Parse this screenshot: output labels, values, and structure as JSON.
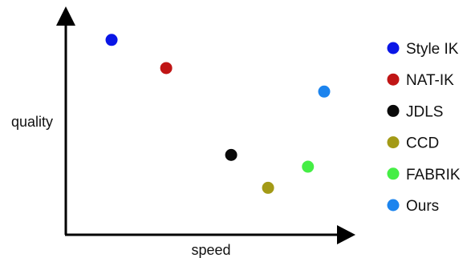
{
  "chart_data": {
    "type": "scatter",
    "title": "",
    "xlabel": "speed",
    "ylabel": "quality",
    "xlim": [
      0,
      10
    ],
    "ylim": [
      0,
      10
    ],
    "grid": false,
    "ticks": false,
    "legend_position": "right",
    "series": [
      {
        "name": "Style IK",
        "color": "#0a16e6",
        "points": [
          [
            1.55,
            8.3
          ]
        ]
      },
      {
        "name": "NAT-IK",
        "color": "#c01515",
        "points": [
          [
            3.4,
            7.1
          ]
        ]
      },
      {
        "name": "JDLS",
        "color": "#0a0a0a",
        "points": [
          [
            5.6,
            3.4
          ]
        ]
      },
      {
        "name": "CCD",
        "color": "#a39a16",
        "points": [
          [
            6.85,
            2.0
          ]
        ]
      },
      {
        "name": "FABRIK",
        "color": "#45ee45",
        "points": [
          [
            8.2,
            2.9
          ]
        ]
      },
      {
        "name": "Ours",
        "color": "#1c84ee",
        "points": [
          [
            8.75,
            6.1
          ]
        ]
      }
    ]
  }
}
